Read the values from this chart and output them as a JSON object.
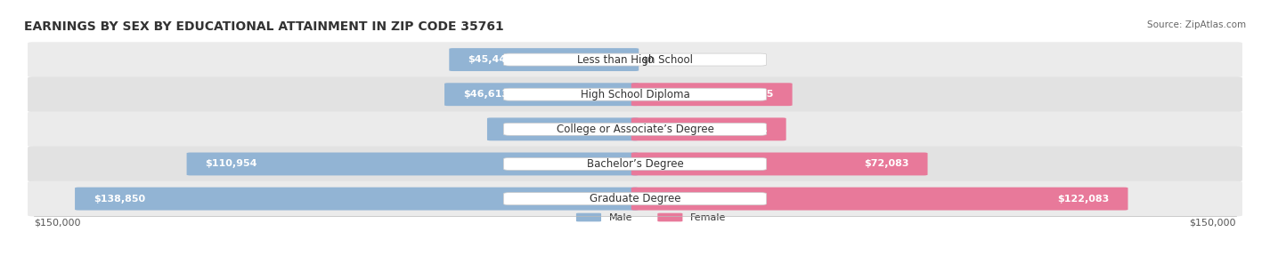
{
  "title": "EARNINGS BY SEX BY EDUCATIONAL ATTAINMENT IN ZIP CODE 35761",
  "source": "Source: ZipAtlas.com",
  "categories": [
    "Less than High School",
    "High School Diploma",
    "College or Associate’s Degree",
    "Bachelor’s Degree",
    "Graduate Degree"
  ],
  "male_values": [
    45444,
    46613,
    35963,
    110954,
    138850
  ],
  "female_values": [
    0,
    38315,
    36771,
    72083,
    122083
  ],
  "max_val": 150000,
  "male_color": "#92b4d4",
  "female_color": "#e8799a",
  "axis_label": "$150,000",
  "male_label": "Male",
  "female_label": "Female",
  "title_fontsize": 10,
  "label_fontsize": 8.5,
  "value_fontsize": 8.0,
  "bg_color": "#ffffff"
}
